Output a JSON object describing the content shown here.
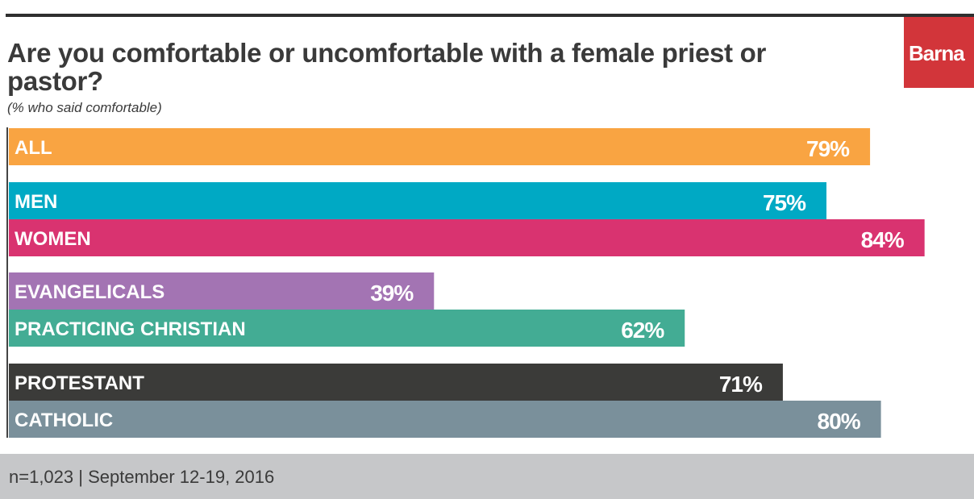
{
  "header": {
    "title": "Are you comfortable or uncomfortable with a female priest or pastor?",
    "subtitle": "(% who said comfortable)",
    "logo": "Barna",
    "logo_color": "#d2353a"
  },
  "footer": {
    "note": "n=1,023 | September 12-19, 2016"
  },
  "chart_data": {
    "type": "bar",
    "orientation": "horizontal",
    "title": "Are you comfortable or uncomfortable with a female priest or pastor?",
    "subtitle": "(% who said comfortable)",
    "categories": [
      "ALL",
      "MEN",
      "WOMEN",
      "EVANGELICALS",
      "PRACTICING CHRISTIAN",
      "PROTESTANT",
      "CATHOLIC"
    ],
    "values": [
      79,
      75,
      84,
      39,
      62,
      71,
      80
    ],
    "value_labels": [
      "79%",
      "75%",
      "84%",
      "39%",
      "62%",
      "71%",
      "80%"
    ],
    "colors": [
      "#f9a442",
      "#00a9c4",
      "#d93370",
      "#a374b3",
      "#43ac94",
      "#3b3b39",
      "#7a909b"
    ],
    "groups": [
      [
        "ALL"
      ],
      [
        "MEN",
        "WOMEN"
      ],
      [
        "EVANGELICALS",
        "PRACTICING CHRISTIAN"
      ],
      [
        "PROTESTANT",
        "CATHOLIC"
      ]
    ],
    "xlim": [
      0,
      100
    ],
    "grid": false,
    "legend": "none"
  }
}
